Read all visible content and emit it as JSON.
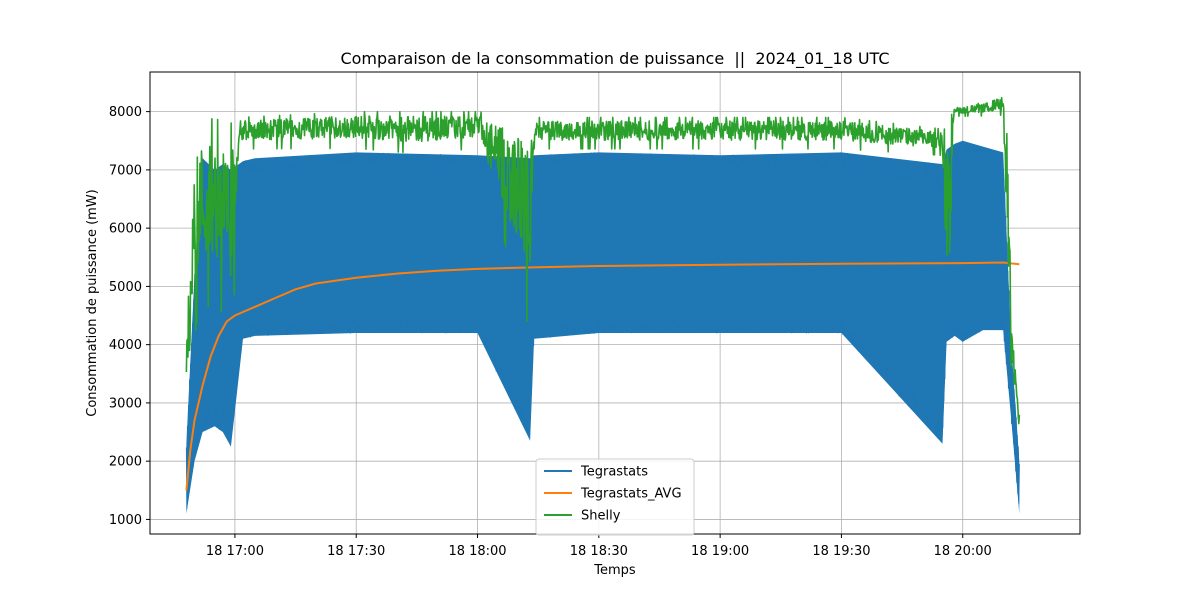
{
  "chart_data": {
    "type": "line",
    "title": "Comparaison de la consommation de puissance  ||  2024_01_18 UTC",
    "xlabel": "Temps",
    "ylabel": "Consommation de puissance (mW)",
    "grid": true,
    "legend_position": "bottom-center",
    "x_axis": {
      "unit": "time",
      "range": [
        "2024-01-18 16:39",
        "2024-01-18 20:29"
      ],
      "ticks": [
        {
          "time": "2024-01-18 17:00",
          "label": "18 17:00"
        },
        {
          "time": "2024-01-18 17:30",
          "label": "18 17:30"
        },
        {
          "time": "2024-01-18 18:00",
          "label": "18 18:00"
        },
        {
          "time": "2024-01-18 18:30",
          "label": "18 18:30"
        },
        {
          "time": "2024-01-18 19:00",
          "label": "18 19:00"
        },
        {
          "time": "2024-01-18 19:30",
          "label": "18 19:30"
        },
        {
          "time": "2024-01-18 20:00",
          "label": "18 20:00"
        }
      ]
    },
    "y_axis": {
      "range": [
        750,
        8680
      ],
      "ticks": [
        1000,
        2000,
        3000,
        4000,
        5000,
        6000,
        7000,
        8000
      ]
    },
    "series": [
      {
        "name": "Tegrastats",
        "color": "#1f77b4",
        "style": "band",
        "time": [
          "16:48",
          "16:50",
          "16:52",
          "16:55",
          "16:57",
          "16:59",
          "17:02",
          "17:05",
          "17:30",
          "18:00",
          "18:13",
          "18:14",
          "18:30",
          "19:00",
          "19:30",
          "19:55",
          "19:56",
          "19:58",
          "20:00",
          "20:05",
          "20:10",
          "20:12",
          "20:14"
        ],
        "low": [
          1100,
          2000,
          2500,
          2600,
          2500,
          2250,
          4100,
          4150,
          4200,
          4200,
          2350,
          4100,
          4200,
          4200,
          4200,
          2300,
          4050,
          4150,
          4050,
          4250,
          4250,
          2700,
          1100
        ],
        "high": [
          2300,
          5200,
          7200,
          7000,
          7100,
          7000,
          7150,
          7200,
          7300,
          7250,
          7200,
          7250,
          7300,
          7250,
          7300,
          7100,
          7350,
          7450,
          7500,
          7400,
          7300,
          4000,
          2000
        ]
      },
      {
        "name": "Tegrastats_AVG",
        "color": "#ff7f0e",
        "style": "line",
        "time": [
          "16:48",
          "16:49",
          "16:50",
          "16:52",
          "16:54",
          "16:56",
          "16:58",
          "17:00",
          "17:05",
          "17:10",
          "17:15",
          "17:20",
          "17:30",
          "17:40",
          "17:50",
          "18:00",
          "18:15",
          "18:30",
          "19:00",
          "19:30",
          "20:00",
          "20:10",
          "20:14"
        ],
        "values": [
          1500,
          2200,
          2700,
          3300,
          3800,
          4150,
          4400,
          4500,
          4650,
          4800,
          4950,
          5050,
          5150,
          5220,
          5270,
          5300,
          5330,
          5350,
          5370,
          5390,
          5400,
          5410,
          5380
        ]
      },
      {
        "name": "Shelly",
        "color": "#2ca02c",
        "style": "band",
        "time": [
          "16:48",
          "16:50",
          "16:51",
          "16:52",
          "16:55",
          "16:57",
          "16:58",
          "16:59",
          "17:01",
          "17:30",
          "17:45",
          "18:00",
          "18:13",
          "18:14",
          "18:30",
          "19:00",
          "19:30",
          "19:55",
          "19:56",
          "19:58",
          "20:05",
          "20:10",
          "20:11",
          "20:12",
          "20:14"
        ],
        "low": [
          2500,
          3700,
          4200,
          4400,
          4200,
          4200,
          4300,
          2500,
          7300,
          7300,
          7200,
          7300,
          3800,
          7300,
          7300,
          7300,
          7300,
          7200,
          3800,
          7900,
          7900,
          7900,
          3800,
          3500,
          2000
        ],
        "high": [
          4200,
          7700,
          7800,
          7800,
          7900,
          7800,
          7800,
          7800,
          7900,
          8000,
          8000,
          8000,
          7900,
          7900,
          7900,
          7900,
          7900,
          7700,
          7700,
          8100,
          8150,
          8300,
          8000,
          4500,
          3000
        ]
      }
    ]
  }
}
